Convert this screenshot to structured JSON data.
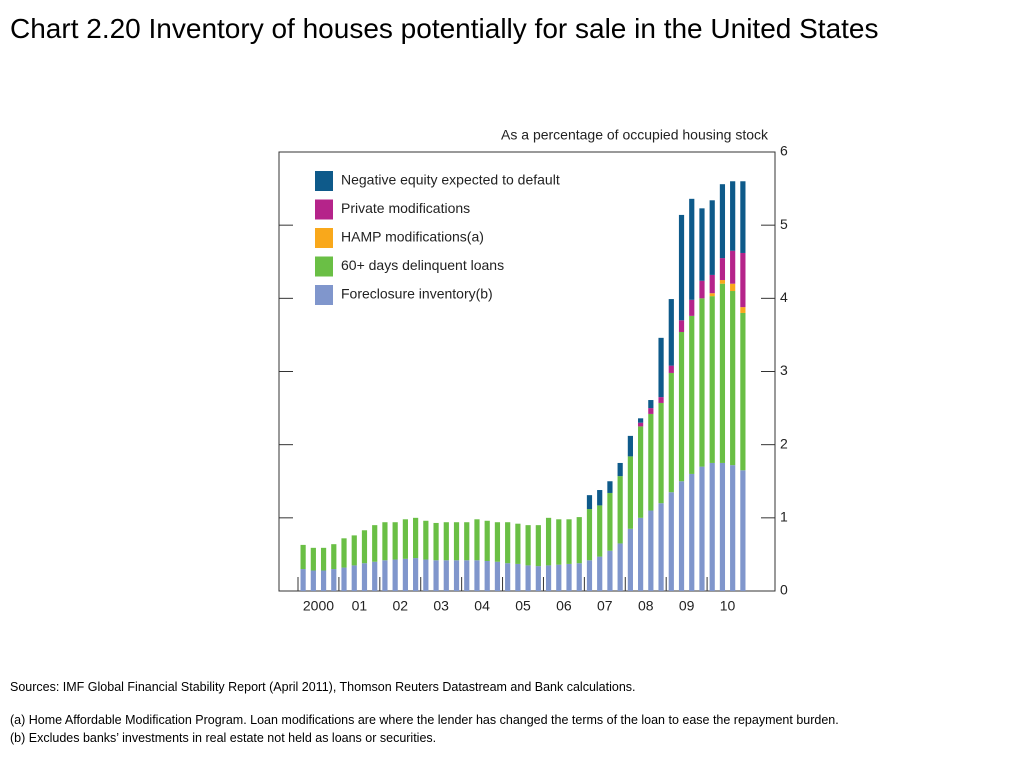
{
  "chart_data": {
    "type": "stacked_bar",
    "title": "Chart 2.20  Inventory of houses potentially for sale in the United States",
    "y_axis_label": "As a percentage of occupied housing stock",
    "categories": [
      "2000",
      null,
      null,
      null,
      "01",
      null,
      null,
      null,
      "02",
      null,
      null,
      null,
      "03",
      null,
      null,
      null,
      "04",
      null,
      null,
      null,
      "05",
      null,
      null,
      null,
      "06",
      null,
      null,
      null,
      "07",
      null,
      null,
      null,
      "08",
      null,
      null,
      null,
      "09",
      null,
      null,
      null,
      "10",
      null,
      null,
      null
    ],
    "ylim": [
      0,
      6
    ],
    "yticks": [
      0,
      1,
      2,
      3,
      4,
      5,
      6
    ],
    "series": [
      {
        "name": "Foreclosure inventory(b)",
        "color": "#8096cc",
        "values": [
          0.3,
          0.28,
          0.28,
          0.3,
          0.32,
          0.35,
          0.38,
          0.4,
          0.42,
          0.43,
          0.44,
          0.45,
          0.43,
          0.42,
          0.42,
          0.42,
          0.42,
          0.42,
          0.41,
          0.4,
          0.38,
          0.37,
          0.35,
          0.34,
          0.35,
          0.36,
          0.37,
          0.38,
          0.42,
          0.47,
          0.55,
          0.65,
          0.85,
          1.0,
          1.1,
          1.2,
          1.35,
          1.5,
          1.6,
          1.7,
          1.75,
          1.75,
          1.72,
          1.65
        ]
      },
      {
        "name": "60+ days delinquent loans",
        "color": "#6abf45",
        "values": [
          0.33,
          0.31,
          0.31,
          0.34,
          0.4,
          0.41,
          0.45,
          0.5,
          0.52,
          0.51,
          0.54,
          0.55,
          0.53,
          0.51,
          0.52,
          0.52,
          0.52,
          0.56,
          0.55,
          0.54,
          0.56,
          0.55,
          0.55,
          0.56,
          0.65,
          0.62,
          0.61,
          0.63,
          0.7,
          0.7,
          0.79,
          0.92,
          0.99,
          1.25,
          1.32,
          1.37,
          1.63,
          2.04,
          2.16,
          2.3,
          2.28,
          2.45,
          2.38,
          2.15
        ]
      },
      {
        "name": "HAMP modifications(a)",
        "color": "#f9a81b",
        "values": [
          0,
          0,
          0,
          0,
          0,
          0,
          0,
          0,
          0,
          0,
          0,
          0,
          0,
          0,
          0,
          0,
          0,
          0,
          0,
          0,
          0,
          0,
          0,
          0,
          0,
          0,
          0,
          0,
          0,
          0,
          0,
          0,
          0,
          0,
          0,
          0,
          0,
          0,
          0,
          0,
          0.04,
          0.05,
          0.1,
          0.08
        ]
      },
      {
        "name": "Private modifications",
        "color": "#b5248a",
        "values": [
          0,
          0,
          0,
          0,
          0,
          0,
          0,
          0,
          0,
          0,
          0,
          0,
          0,
          0,
          0,
          0,
          0,
          0,
          0,
          0,
          0,
          0,
          0,
          0,
          0,
          0,
          0,
          0,
          0,
          0,
          0,
          0,
          0,
          0.05,
          0.08,
          0.08,
          0.1,
          0.16,
          0.22,
          0.24,
          0.25,
          0.3,
          0.45,
          0.74
        ]
      },
      {
        "name": "Negative equity expected to default",
        "color": "#0e5a8a",
        "values": [
          0,
          0,
          0,
          0,
          0,
          0,
          0,
          0,
          0,
          0,
          0,
          0,
          0,
          0,
          0,
          0,
          0,
          0,
          0,
          0,
          0,
          0,
          0,
          0,
          0,
          0,
          0,
          0,
          0.19,
          0.21,
          0.16,
          0.18,
          0.28,
          0.06,
          0.11,
          0.81,
          0.91,
          1.44,
          1.38,
          0.99,
          1.02,
          1.01,
          0.95,
          0.98
        ]
      }
    ]
  },
  "footer": {
    "sources": "Sources:  IMF Global Financial Stability Report (April 2011), Thomson Reuters Datastream and Bank calculations.",
    "notes": [
      "(a)  Home Affordable Modification Program.  Loan modifications are where the lender has changed the terms of the loan to ease the repayment burden.",
      "(b)  Excludes banks’ investments in real estate not held as loans or securities."
    ]
  }
}
